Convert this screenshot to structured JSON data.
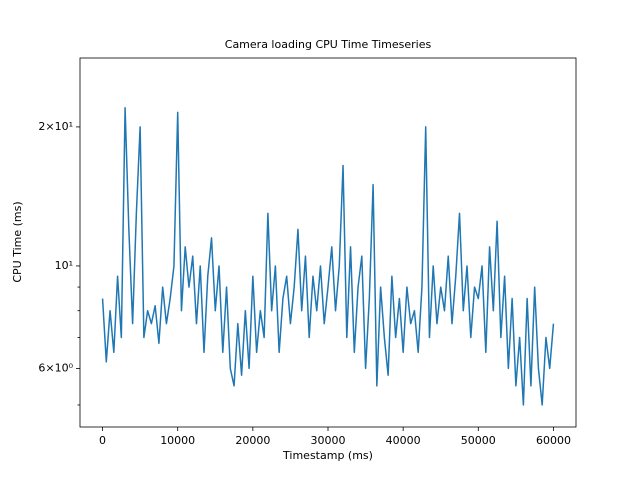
{
  "chart_data": {
    "type": "line",
    "title": "Camera loading CPU Time Timeseries",
    "x_label": "Timestamp (ms)",
    "y_label": "CPU Time (ms)",
    "y_scale": "log",
    "xlim": [
      -3000,
      63000
    ],
    "ylim": [
      4.48,
      28.2
    ],
    "xticks": [
      0,
      10000,
      20000,
      30000,
      40000,
      50000,
      60000
    ],
    "yticks": [
      {
        "value": 6,
        "label": "6×10⁰"
      },
      {
        "value": 10,
        "label": "10¹"
      },
      {
        "value": 20,
        "label": "2×10¹"
      }
    ],
    "yminorticks": [
      5,
      7,
      8,
      9
    ],
    "grid": false,
    "series": [
      {
        "name": "CPU Time",
        "color": "#1f77b4",
        "x": [
          0,
          500,
          1000,
          1500,
          2000,
          2500,
          3000,
          3500,
          4000,
          4500,
          5000,
          5500,
          6000,
          6500,
          7000,
          7500,
          8000,
          8500,
          9000,
          9500,
          10000,
          10500,
          11000,
          11500,
          12000,
          12500,
          13000,
          13500,
          14000,
          14500,
          15000,
          15500,
          16000,
          16500,
          17000,
          17500,
          18000,
          18500,
          19000,
          19500,
          20000,
          20500,
          21000,
          21500,
          22000,
          22500,
          23000,
          23500,
          24000,
          24500,
          25000,
          25500,
          26000,
          26500,
          27000,
          27500,
          28000,
          28500,
          29000,
          29500,
          30000,
          30500,
          31000,
          31500,
          32000,
          32500,
          33000,
          33500,
          34000,
          34500,
          35000,
          35500,
          36000,
          36500,
          37000,
          37500,
          38000,
          38500,
          39000,
          39500,
          40000,
          40500,
          41000,
          41500,
          42000,
          42500,
          43000,
          43500,
          44000,
          44500,
          45000,
          45500,
          46000,
          46500,
          47000,
          47500,
          48000,
          48500,
          49000,
          49500,
          50000,
          50500,
          51000,
          51500,
          52000,
          52500,
          53000,
          53500,
          54000,
          54500,
          55000,
          55500,
          56000,
          56500,
          57000,
          57500,
          58000,
          58500,
          59000,
          59500,
          60000
        ],
        "values": [
          8.5,
          6.2,
          8,
          6.5,
          9.5,
          7,
          22,
          12,
          7.5,
          13,
          20,
          7,
          8,
          7.5,
          8.2,
          6.8,
          9,
          7.5,
          8.5,
          10,
          21.5,
          8,
          11,
          9,
          10.5,
          7.5,
          10,
          6.5,
          9.5,
          11.5,
          8,
          10,
          6.5,
          9,
          6,
          5.5,
          7.5,
          5.8,
          8,
          6,
          9.5,
          6.5,
          8,
          7,
          13,
          8,
          10,
          6.5,
          8.5,
          9.5,
          7.5,
          9,
          12,
          8,
          10.5,
          7,
          9.5,
          8,
          10,
          7.5,
          9,
          11,
          8,
          10,
          16.5,
          7,
          11,
          6.5,
          9,
          10.5,
          6,
          8.5,
          15,
          5.5,
          9,
          7,
          5.8,
          9.5,
          7,
          8.5,
          6.5,
          9,
          7.5,
          8,
          6.5,
          9,
          20,
          7,
          10,
          7.5,
          9,
          8,
          10.5,
          7.5,
          9.5,
          13,
          8,
          10,
          7,
          9,
          8.5,
          10,
          6.5,
          11,
          8,
          12.5,
          7,
          9.5,
          6,
          8.5,
          5.5,
          7,
          5,
          8.5,
          5.5,
          9,
          6,
          5,
          7,
          6,
          7.5
        ]
      }
    ]
  }
}
